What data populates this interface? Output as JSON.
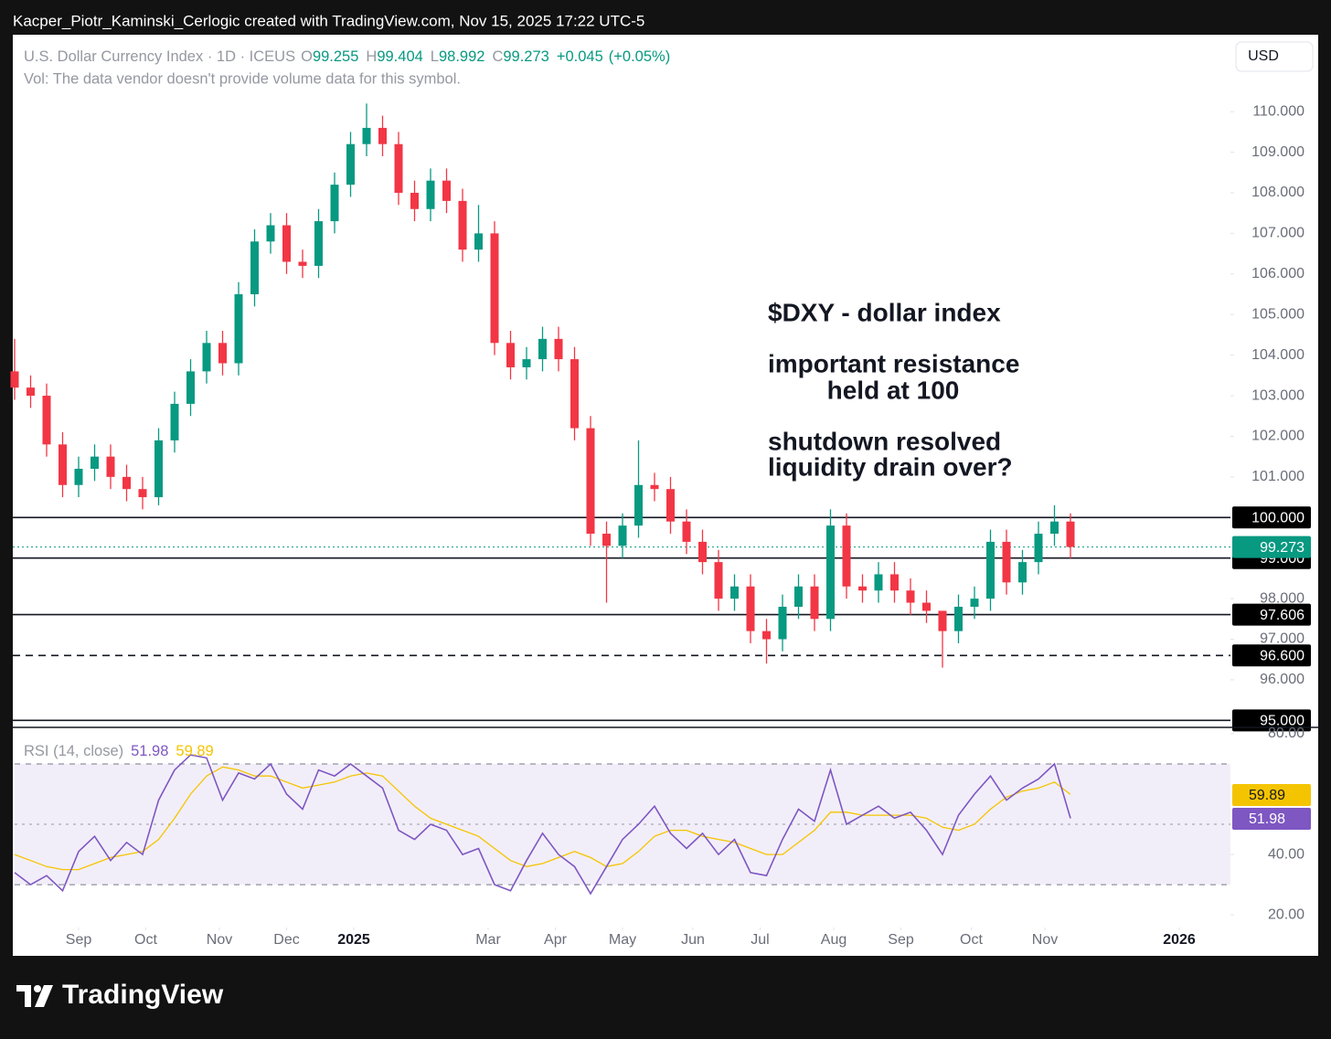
{
  "header": {
    "credit": "Kacper_Piotr_Kaminski_Cerlogic created with TradingView.com, Nov 15, 2025 17:22 UTC-5",
    "currency_button": "USD"
  },
  "footer": {
    "logo": "TradingView"
  },
  "chart_data": [
    {
      "type": "candlestick",
      "title": "U.S. Dollar Currency Index · 1D · ICEUS",
      "subtitle": "Vol: The data vendor doesn't provide volume data for this symbol.",
      "legend": [
        {
          "label": "O",
          "value": 99.255
        },
        {
          "label": "H",
          "value": 99.404
        },
        {
          "label": "L",
          "value": 98.992
        },
        {
          "label": "C",
          "value": 99.273
        }
      ],
      "change": "+0.045",
      "change_pct": "(+0.05%)",
      "up_color": "#089981",
      "down_color": "#f23645",
      "x": [
        0,
        5,
        10,
        15,
        20,
        25,
        30,
        35,
        40,
        45,
        50,
        55,
        60,
        65,
        70,
        75,
        80,
        85,
        90,
        95,
        100,
        105,
        110,
        115,
        120,
        125,
        130,
        135,
        140,
        145,
        150,
        155,
        160,
        165,
        170,
        175,
        180,
        185,
        190,
        195,
        200,
        205,
        210,
        215,
        220,
        225,
        230,
        235,
        240,
        245,
        250,
        255,
        260,
        265,
        270,
        275,
        280,
        285,
        290,
        295,
        300,
        305,
        310,
        315,
        320,
        325,
        330
      ],
      "open": [
        103.6,
        103.2,
        103.0,
        101.8,
        100.8,
        101.2,
        101.5,
        101.0,
        100.7,
        100.5,
        101.9,
        102.8,
        103.6,
        104.3,
        103.8,
        105.5,
        106.8,
        107.2,
        106.3,
        106.2,
        107.3,
        108.2,
        109.2,
        109.6,
        109.2,
        108.0,
        107.6,
        108.3,
        107.8,
        106.6,
        107.0,
        104.3,
        103.7,
        103.9,
        104.4,
        103.9,
        102.2,
        99.6,
        99.3,
        99.8,
        100.8,
        100.7,
        99.9,
        99.4,
        98.9,
        98.0,
        98.3,
        97.2,
        97.0,
        97.8,
        98.3,
        97.5,
        99.8,
        98.3,
        98.2,
        98.6,
        98.2,
        97.9,
        97.7,
        97.2,
        97.8,
        98.0,
        99.4,
        98.4,
        98.9,
        99.6,
        99.9
      ],
      "high": [
        104.4,
        103.5,
        103.3,
        102.1,
        101.5,
        101.8,
        101.8,
        101.3,
        101.0,
        102.2,
        103.1,
        103.9,
        104.6,
        104.6,
        105.8,
        107.1,
        107.5,
        107.5,
        106.6,
        107.6,
        108.5,
        109.5,
        110.2,
        109.9,
        109.5,
        108.3,
        108.6,
        108.6,
        108.1,
        107.7,
        107.3,
        104.6,
        104.2,
        104.7,
        104.7,
        104.2,
        102.5,
        99.9,
        100.1,
        101.9,
        101.1,
        101.0,
        100.2,
        99.7,
        99.2,
        98.6,
        98.6,
        97.5,
        98.1,
        98.6,
        98.6,
        100.2,
        100.1,
        98.6,
        98.9,
        98.9,
        98.5,
        98.2,
        97.7,
        98.1,
        98.3,
        99.7,
        99.7,
        99.2,
        99.9,
        100.3,
        100.1
      ],
      "low": [
        102.9,
        102.7,
        101.5,
        100.5,
        100.5,
        100.9,
        100.7,
        100.4,
        100.2,
        100.3,
        101.6,
        102.5,
        103.3,
        103.5,
        103.5,
        105.2,
        106.5,
        106.0,
        105.9,
        105.9,
        107.0,
        107.9,
        108.9,
        108.9,
        107.7,
        107.3,
        107.3,
        107.5,
        106.3,
        106.3,
        104.0,
        103.4,
        103.4,
        103.6,
        103.6,
        101.9,
        99.3,
        97.9,
        99.0,
        99.5,
        100.4,
        99.6,
        99.1,
        98.6,
        97.7,
        97.7,
        96.9,
        96.4,
        96.7,
        97.5,
        97.2,
        97.2,
        98.0,
        97.9,
        97.9,
        97.9,
        97.6,
        97.4,
        96.3,
        96.9,
        97.5,
        97.7,
        98.1,
        98.1,
        98.6,
        99.3,
        98.992
      ],
      "close": [
        103.2,
        103.0,
        101.8,
        100.8,
        101.2,
        101.5,
        101.0,
        100.7,
        100.5,
        101.9,
        102.8,
        103.6,
        104.3,
        103.8,
        105.5,
        106.8,
        107.2,
        106.3,
        106.2,
        107.3,
        108.2,
        109.2,
        109.6,
        109.2,
        108.0,
        107.6,
        108.3,
        107.8,
        106.6,
        107.0,
        104.3,
        103.7,
        103.9,
        104.4,
        103.9,
        102.2,
        99.6,
        99.3,
        99.8,
        100.8,
        100.7,
        99.9,
        99.4,
        98.9,
        98.0,
        98.3,
        97.2,
        97.0,
        97.8,
        98.3,
        97.5,
        99.8,
        98.3,
        98.2,
        98.6,
        98.2,
        97.9,
        97.7,
        97.2,
        97.8,
        98.0,
        99.4,
        98.4,
        98.9,
        99.6,
        99.9,
        99.273
      ],
      "xlim": [
        0,
        380
      ],
      "ylim": [
        94.85,
        111.85
      ],
      "yticks": [
        {
          "value": 96,
          "label": "96.000"
        },
        {
          "value": 97,
          "label": "97.000"
        },
        {
          "value": 98,
          "label": "98.000"
        },
        {
          "value": 101,
          "label": "101.000"
        },
        {
          "value": 102,
          "label": "102.000"
        },
        {
          "value": 103,
          "label": "103.000"
        },
        {
          "value": 104,
          "label": "104.000"
        },
        {
          "value": 105,
          "label": "105.000"
        },
        {
          "value": 106,
          "label": "106.000"
        },
        {
          "value": 107,
          "label": "107.000"
        },
        {
          "value": 108,
          "label": "108.000"
        },
        {
          "value": 109,
          "label": "109.000"
        },
        {
          "value": 110,
          "label": "110.000"
        }
      ],
      "hlines": [
        {
          "value": 100,
          "label": "100.000",
          "style": "solid"
        },
        {
          "value": 99,
          "label": "99.000",
          "style": "solid"
        },
        {
          "value": 97.606,
          "label": "97.606",
          "style": "solid"
        },
        {
          "value": 96.6,
          "label": "96.600",
          "style": "dashed"
        },
        {
          "value": 95,
          "label": "95.000",
          "style": "solid"
        }
      ],
      "last_price": 99.273,
      "annotations": [
        "$DXY - dollar index",
        "important resistance",
        "held at 100",
        "shutdown resolved",
        "liquidity drain over?"
      ]
    },
    {
      "type": "line",
      "title": "RSI (14, close)",
      "x": [
        0,
        5,
        10,
        15,
        20,
        25,
        30,
        35,
        40,
        45,
        50,
        55,
        60,
        65,
        70,
        75,
        80,
        85,
        90,
        95,
        100,
        105,
        110,
        115,
        120,
        125,
        130,
        135,
        140,
        145,
        150,
        155,
        160,
        165,
        170,
        175,
        180,
        185,
        190,
        195,
        200,
        205,
        210,
        215,
        220,
        225,
        230,
        235,
        240,
        245,
        250,
        255,
        260,
        265,
        270,
        275,
        280,
        285,
        290,
        295,
        300,
        305,
        310,
        315,
        320,
        325,
        330
      ],
      "series": [
        {
          "color": "#7e57c2",
          "values": [
            34,
            30,
            33,
            28,
            41,
            46,
            38,
            44,
            40,
            58,
            68,
            73,
            72,
            58,
            67,
            65,
            70,
            60,
            55,
            68,
            66,
            70,
            66,
            62,
            48,
            45,
            50,
            48,
            40,
            42,
            30,
            28,
            38,
            47,
            40,
            36,
            27,
            36,
            45,
            50,
            56,
            47,
            42,
            47,
            40,
            45,
            34,
            33,
            45,
            55,
            51,
            68,
            50,
            53,
            56,
            52,
            54,
            48,
            40,
            53,
            60,
            66,
            58,
            62,
            65,
            70,
            51.98
          ]
        },
        {
          "color": "#f5c400",
          "values": [
            40,
            38,
            36,
            35,
            35,
            37,
            39,
            40,
            41,
            45,
            52,
            60,
            66,
            69,
            68,
            66,
            66,
            64,
            62,
            63,
            64,
            66,
            67,
            66,
            61,
            56,
            52,
            50,
            48,
            46,
            42,
            38,
            36,
            37,
            39,
            41,
            39,
            36,
            37,
            41,
            46,
            48,
            48,
            46,
            45,
            44,
            42,
            40,
            40,
            44,
            48,
            54,
            54,
            53,
            53,
            53,
            53,
            52,
            49,
            48,
            50,
            55,
            59,
            61,
            62,
            64,
            59.89
          ]
        }
      ],
      "band": [
        30,
        70
      ],
      "midline": 50,
      "xlim": [
        0,
        380
      ],
      "ylim": [
        15.8,
        81.8
      ],
      "yticks": [
        {
          "value": 20,
          "label": "20.00"
        },
        {
          "value": 40,
          "label": "40.00"
        },
        {
          "value": 80,
          "label": "80.00"
        }
      ],
      "xticks": [
        {
          "value": 20,
          "label": "Sep"
        },
        {
          "value": 41,
          "label": "Oct"
        },
        {
          "value": 64,
          "label": "Nov"
        },
        {
          "value": 85,
          "label": "Dec"
        },
        {
          "value": 106,
          "label": "2025"
        },
        {
          "value": 148,
          "label": "Mar"
        },
        {
          "value": 169,
          "label": "Apr"
        },
        {
          "value": 190,
          "label": "May"
        },
        {
          "value": 212,
          "label": "Jun"
        },
        {
          "value": 233,
          "label": "Jul"
        },
        {
          "value": 256,
          "label": "Aug"
        },
        {
          "value": 277,
          "label": "Sep"
        },
        {
          "value": 299,
          "label": "Oct"
        },
        {
          "value": 322,
          "label": "Nov"
        },
        {
          "value": 364,
          "label": "2026"
        }
      ]
    }
  ]
}
